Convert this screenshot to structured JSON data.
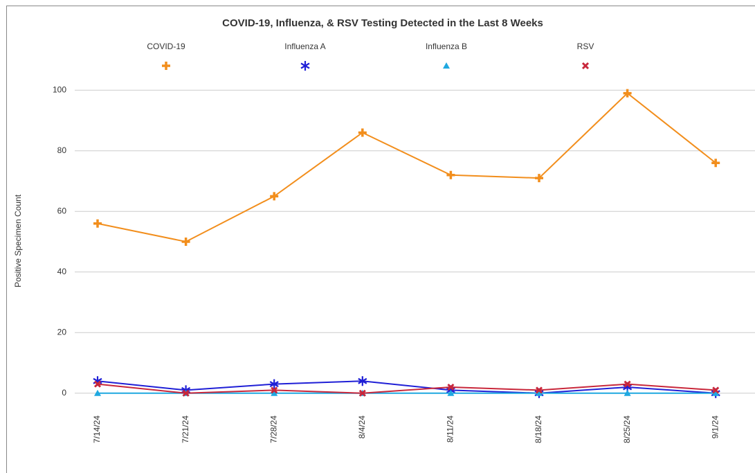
{
  "chart_data": {
    "type": "line",
    "title": "COVID-19, Influenza, & RSV Testing Detected in the Last 8 Weeks",
    "y_label": "Positive Specimen Count",
    "categories": [
      "7/14/24",
      "7/21/24",
      "7/28/24",
      "8/4/24",
      "8/11/24",
      "8/18/24",
      "8/25/24",
      "9/1/24"
    ],
    "series": [
      {
        "name": "COVID-19",
        "color": "#f28e1c",
        "marker": "plus",
        "values": [
          56,
          50,
          65,
          86,
          72,
          71,
          99,
          76
        ]
      },
      {
        "name": "Influenza A",
        "color": "#1f1fd6",
        "marker": "star",
        "values": [
          4,
          1,
          3,
          4,
          1,
          0,
          2,
          0
        ]
      },
      {
        "name": "Influenza B",
        "color": "#1fa8e0",
        "marker": "triangle",
        "values": [
          0,
          0,
          0,
          0,
          0,
          0,
          0,
          0
        ]
      },
      {
        "name": "RSV",
        "color": "#c8273b",
        "marker": "cross",
        "values": [
          3,
          0,
          1,
          0,
          2,
          1,
          3,
          1
        ]
      }
    ],
    "ylim": [
      -6,
      106
    ],
    "yticks": [
      0,
      20,
      40,
      60,
      80,
      100
    ],
    "grid": true,
    "legend": "top"
  }
}
